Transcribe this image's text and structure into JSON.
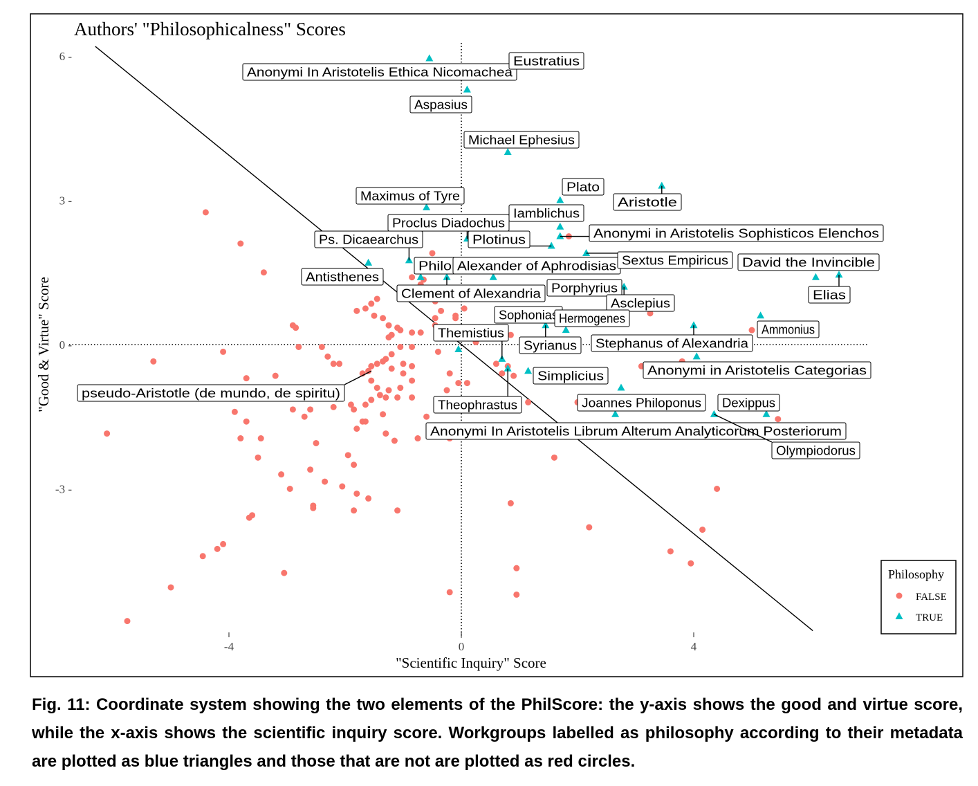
{
  "chart_data": {
    "type": "scatter",
    "title": "Authors' \"Philosophicalness\" Scores",
    "xlabel": "\"Scientific Inquiry\" Score",
    "ylabel": "\"Good & Virtue\" Score",
    "xlim": [
      -7.5,
      7.6
    ],
    "ylim": [
      -6.2,
      6.4
    ],
    "x_ticks": [
      -4,
      0,
      4
    ],
    "y_ticks": [
      6,
      3,
      0,
      -3
    ],
    "grid": false,
    "reference_lines": [
      {
        "orientation": "vertical",
        "value": 0,
        "style": "dotted"
      },
      {
        "orientation": "horizontal",
        "value": 0,
        "style": "dotted"
      },
      {
        "orientation": "diagonal",
        "from": [
          -6.3,
          6.2
        ],
        "to": [
          6.05,
          -5.95
        ],
        "style": "solid"
      }
    ],
    "legend": {
      "title": "Philosophy",
      "position": "bottom-right",
      "entries": [
        {
          "label": "FALSE",
          "shape": "circle",
          "color": "#F8766D"
        },
        {
          "label": "TRUE",
          "shape": "triangle",
          "color": "#00BFC4"
        }
      ]
    },
    "series": [
      {
        "name": "FALSE",
        "shape": "circle",
        "color": "#F8766D",
        "points": [
          [
            -4.4,
            2.75
          ],
          [
            -3.8,
            2.1
          ],
          [
            -3.4,
            1.5
          ],
          [
            -5.3,
            -0.35
          ],
          [
            -4.1,
            -0.15
          ],
          [
            -6.1,
            -1.85
          ],
          [
            -3.7,
            -0.7
          ],
          [
            -3.2,
            -0.65
          ],
          [
            -2.9,
            0.4
          ],
          [
            -2.85,
            0.35
          ],
          [
            -2.8,
            -0.05
          ],
          [
            -2.4,
            -0.05
          ],
          [
            -2.3,
            -0.25
          ],
          [
            -2.2,
            -0.4
          ],
          [
            -2.1,
            -0.4
          ],
          [
            -3.9,
            -1.4
          ],
          [
            -3.7,
            -1.6
          ],
          [
            -3.8,
            -1.95
          ],
          [
            -3.45,
            -1.95
          ],
          [
            -3.5,
            -2.35
          ],
          [
            -3.1,
            -2.7
          ],
          [
            -2.9,
            -1.35
          ],
          [
            -2.7,
            -1.5
          ],
          [
            -2.6,
            -1.35
          ],
          [
            -2.5,
            -2.05
          ],
          [
            -2.6,
            -2.6
          ],
          [
            -2.95,
            -3.0
          ],
          [
            -2.55,
            -3.35
          ],
          [
            -2.35,
            -2.85
          ],
          [
            -2.55,
            -3.4
          ],
          [
            -2.05,
            -2.95
          ],
          [
            -1.95,
            -2.3
          ],
          [
            -1.8,
            -1.75
          ],
          [
            -1.85,
            -1.35
          ],
          [
            -1.7,
            -1.6
          ],
          [
            -1.65,
            -1.6
          ],
          [
            -1.85,
            -2.5
          ],
          [
            -1.8,
            -3.1
          ],
          [
            -1.85,
            -3.45
          ],
          [
            -1.6,
            -3.2
          ],
          [
            -1.35,
            -1.45
          ],
          [
            -1.3,
            -1.85
          ],
          [
            -1.15,
            -2.0
          ],
          [
            -1.1,
            -3.45
          ],
          [
            -3.6,
            -3.55
          ],
          [
            -3.65,
            -3.6
          ],
          [
            -4.1,
            -4.15
          ],
          [
            -4.2,
            -4.25
          ],
          [
            -4.45,
            -4.4
          ],
          [
            -5.0,
            -5.05
          ],
          [
            -5.75,
            -5.75
          ],
          [
            -3.05,
            -4.75
          ],
          [
            -1.8,
            0.7
          ],
          [
            -1.65,
            0.75
          ],
          [
            -1.5,
            0.6
          ],
          [
            -1.55,
            0.85
          ],
          [
            -1.45,
            0.95
          ],
          [
            -1.35,
            0.55
          ],
          [
            -1.25,
            0.4
          ],
          [
            -1.1,
            0.35
          ],
          [
            -1.05,
            0.3
          ],
          [
            -1.2,
            0.2
          ],
          [
            -1.25,
            0.15
          ],
          [
            -0.85,
            0.25
          ],
          [
            -0.7,
            0.25
          ],
          [
            -0.85,
            -0.05
          ],
          [
            -1.05,
            -0.05
          ],
          [
            -1.2,
            -0.2
          ],
          [
            -1.3,
            -0.3
          ],
          [
            -1.35,
            -0.35
          ],
          [
            -1.45,
            -0.4
          ],
          [
            -1.55,
            -0.45
          ],
          [
            -1.6,
            -0.55
          ],
          [
            -1.7,
            -0.6
          ],
          [
            -1.55,
            -0.75
          ],
          [
            -1.45,
            -0.9
          ],
          [
            -1.4,
            -1.05
          ],
          [
            -1.3,
            -1.1
          ],
          [
            -1.55,
            -1.15
          ],
          [
            -1.65,
            -1.25
          ],
          [
            -1.9,
            -1.25
          ],
          [
            -2.2,
            -1.3
          ],
          [
            -1.2,
            -0.5
          ],
          [
            -1.0,
            -0.6
          ],
          [
            -0.85,
            -0.75
          ],
          [
            -1.05,
            -0.9
          ],
          [
            -1.25,
            -0.95
          ],
          [
            -1.1,
            -1.1
          ],
          [
            -0.85,
            -1.1
          ],
          [
            -0.85,
            -0.45
          ],
          [
            -1.0,
            -0.4
          ],
          [
            -0.6,
            -1.5
          ],
          [
            -0.75,
            -1.95
          ],
          [
            -0.55,
            -1.9
          ],
          [
            -0.45,
            0.55
          ],
          [
            -0.35,
            0.7
          ],
          [
            -0.45,
            0.9
          ],
          [
            -0.55,
            1.05
          ],
          [
            -0.65,
            1.35
          ],
          [
            -0.7,
            1.25
          ],
          [
            -0.85,
            1.4
          ],
          [
            -0.5,
            1.9
          ],
          [
            -0.45,
            0.4
          ],
          [
            -0.1,
            0.55
          ],
          [
            -0.1,
            0.6
          ],
          [
            -0.4,
            -0.15
          ],
          [
            -0.2,
            -0.6
          ],
          [
            -0.25,
            -0.95
          ],
          [
            0.1,
            -0.8
          ],
          [
            0.6,
            -0.4
          ],
          [
            0.8,
            -0.45
          ],
          [
            0.7,
            -0.6
          ],
          [
            0.9,
            -0.65
          ],
          [
            1.15,
            -1.2
          ],
          [
            1.35,
            1.05
          ],
          [
            1.85,
            2.25
          ],
          [
            2.0,
            1.75
          ],
          [
            2.1,
            1.65
          ],
          [
            3.25,
            0.65
          ],
          [
            3.1,
            -0.45
          ],
          [
            2.0,
            -1.2
          ],
          [
            3.8,
            -0.35
          ],
          [
            0.85,
            -3.3
          ],
          [
            1.6,
            -2.35
          ],
          [
            2.2,
            -3.8
          ],
          [
            3.6,
            -4.3
          ],
          [
            4.15,
            -3.85
          ],
          [
            4.4,
            -3.0
          ],
          [
            3.95,
            -4.55
          ],
          [
            0.95,
            -4.65
          ],
          [
            0.95,
            -5.2
          ],
          [
            -0.2,
            -5.15
          ],
          [
            -0.2,
            -1.95
          ],
          [
            5.45,
            -1.55
          ],
          [
            5.0,
            0.3
          ],
          [
            4.95,
            0.1
          ],
          [
            0.05,
            0.75
          ],
          [
            0.25,
            0.05
          ],
          [
            -0.05,
            -0.8
          ],
          [
            0.85,
            0.2
          ]
        ]
      },
      {
        "name": "TRUE",
        "shape": "triangle",
        "color": "#00BFC4",
        "points": [
          [
            -0.55,
            5.95
          ],
          [
            0.8,
            5.7
          ],
          [
            0.1,
            5.3
          ],
          [
            0.8,
            4.0
          ],
          [
            1.7,
            3.0
          ],
          [
            3.45,
            3.3
          ],
          [
            -0.6,
            2.85
          ],
          [
            1.7,
            2.45
          ],
          [
            1.7,
            2.25
          ],
          [
            1.55,
            2.05
          ],
          [
            0.1,
            2.2
          ],
          [
            -1.6,
            1.7
          ],
          [
            -0.9,
            1.75
          ],
          [
            -0.7,
            1.4
          ],
          [
            -0.25,
            1.4
          ],
          [
            0.55,
            1.4
          ],
          [
            2.15,
            1.9
          ],
          [
            2.8,
            1.2
          ],
          [
            6.1,
            1.4
          ],
          [
            6.5,
            1.45
          ],
          [
            5.15,
            0.6
          ],
          [
            4.0,
            0.4
          ],
          [
            1.45,
            0.4
          ],
          [
            1.8,
            0.3
          ],
          [
            0.7,
            -0.3
          ],
          [
            0.8,
            -0.5
          ],
          [
            1.15,
            -0.55
          ],
          [
            4.05,
            -0.25
          ],
          [
            2.75,
            -0.9
          ],
          [
            2.65,
            -1.45
          ],
          [
            4.35,
            -1.45
          ],
          [
            5.25,
            -1.45
          ],
          [
            -0.05,
            -0.1
          ]
        ]
      }
    ],
    "point_labels": [
      {
        "text": "Anonymi In Aristotelis Ethica Nicomachea",
        "point": [
          0.8,
          5.7
        ]
      },
      {
        "text": "Eustratius",
        "point": [
          0.8,
          5.7
        ]
      },
      {
        "text": "Aspasius",
        "point": [
          0.1,
          5.3
        ]
      },
      {
        "text": "Michael Ephesius",
        "point": [
          0.8,
          4.0
        ]
      },
      {
        "text": "Plato",
        "point": [
          1.7,
          3.0
        ]
      },
      {
        "text": "Aristotle",
        "point": [
          3.45,
          3.3
        ]
      },
      {
        "text": "Maximus of Tyre",
        "point": [
          -0.6,
          2.85
        ]
      },
      {
        "text": "Iamblichus",
        "point": [
          1.7,
          2.45
        ]
      },
      {
        "text": "Proclus Diadochus",
        "point": [
          0.1,
          2.2
        ]
      },
      {
        "text": "Anonymi in Aristotelis Sophisticos Elenchos",
        "point": [
          1.7,
          2.25
        ]
      },
      {
        "text": "Ps. Dicaearchus",
        "point": [
          -0.9,
          1.75
        ]
      },
      {
        "text": "Plotinus",
        "point": [
          1.55,
          2.05
        ]
      },
      {
        "text": "Philo",
        "point": [
          -0.7,
          1.4
        ]
      },
      {
        "text": "Alexander of Aphrodisias",
        "point": [
          0.55,
          1.4
        ]
      },
      {
        "text": "Sextus Empiricus",
        "point": [
          2.15,
          1.9
        ]
      },
      {
        "text": "David the Invincible",
        "point": [
          6.1,
          1.4
        ]
      },
      {
        "text": "Antisthenes",
        "point": [
          -1.6,
          1.7
        ]
      },
      {
        "text": "Porphyrius",
        "point": [
          2.8,
          1.2
        ]
      },
      {
        "text": "Elias",
        "point": [
          6.5,
          1.45
        ]
      },
      {
        "text": "Clement of Alexandria",
        "point": [
          -0.25,
          1.4
        ]
      },
      {
        "text": "Asclepius",
        "point": [
          2.8,
          1.2
        ]
      },
      {
        "text": "Sophonias",
        "point": [
          1.45,
          0.4
        ]
      },
      {
        "text": "Hermogenes",
        "point": [
          1.8,
          0.3
        ]
      },
      {
        "text": "Ammonius",
        "point": [
          5.15,
          0.6
        ]
      },
      {
        "text": "Themistius",
        "point": [
          0.7,
          -0.3
        ]
      },
      {
        "text": "Syrianus",
        "point": [
          1.45,
          0.4
        ]
      },
      {
        "text": "Stephanus of Alexandria",
        "point": [
          4.0,
          0.4
        ]
      },
      {
        "text": "Anonymi in Aristotelis Categorias",
        "point": [
          4.05,
          -0.25
        ]
      },
      {
        "text": "Simplicius",
        "point": [
          1.15,
          -0.55
        ]
      },
      {
        "text": "pseudo-Aristotle (de mundo, de spiritu)",
        "point": [
          -1.55,
          -0.55
        ]
      },
      {
        "text": "Theophrastus",
        "point": [
          0.8,
          -0.5
        ]
      },
      {
        "text": "Joannes Philoponus",
        "point": [
          2.65,
          -1.45
        ]
      },
      {
        "text": "Dexippus",
        "point": [
          5.25,
          -1.45
        ]
      },
      {
        "text": "Anonymi In Aristotelis Librum Alterum Analyticorum Posteriorum",
        "point": [
          0.5,
          -1.75
        ]
      },
      {
        "text": "Olympiodorus",
        "point": [
          4.35,
          -1.45
        ]
      }
    ]
  },
  "caption": "Fig. 11: Coordinate system showing the two elements of the PhilScore: the y-axis shows the good and virtue score, while the x-axis shows the scientific inquiry score. Workgroups labelled as philosophy according to their metadata are plotted as blue triangles and those that are not are plotted as red circles."
}
